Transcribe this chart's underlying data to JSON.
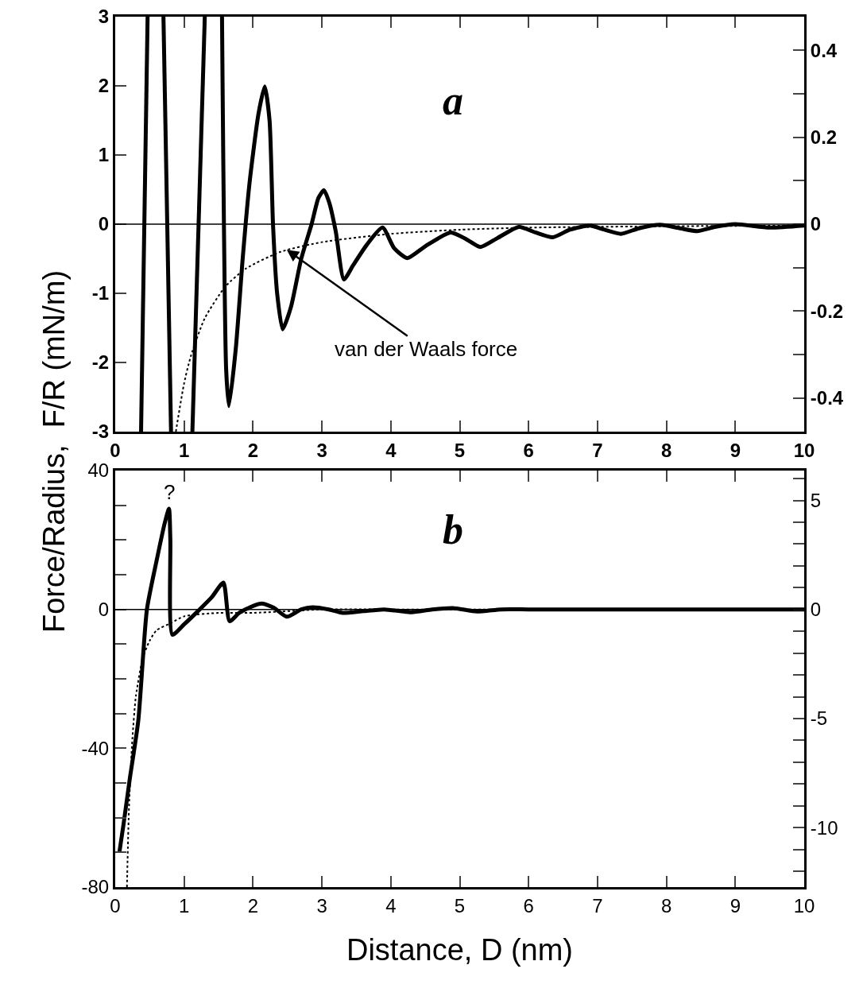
{
  "chart_data": [
    {
      "type": "line",
      "ylabel": "Force/Radius,  F/R (mN/m)",
      "annotations": [
        "a",
        {
          "text": "van der Waals force",
          "x": 2.49,
          "y": -0.37
        }
      ],
      "series": [
        {
          "color": "#000000",
          "line_style": "solid",
          "x": [
            0.375,
            0.47,
            0.58,
            0.7,
            0.81,
            0.95,
            1.12,
            1.3,
            1.42,
            1.55,
            1.61,
            1.65,
            1.75,
            1.85,
            1.95,
            2.08,
            2.17,
            2.24,
            2.29,
            2.35,
            2.43,
            2.55,
            2.7,
            2.85,
            2.95,
            3.03,
            3.11,
            3.2,
            3.32,
            3.45,
            3.65,
            3.88,
            4.05,
            4.24,
            4.5,
            4.87,
            5.1,
            5.3,
            5.55,
            5.86,
            6.1,
            6.35,
            6.6,
            6.89,
            7.1,
            7.34,
            7.6,
            7.91,
            8.2,
            8.45,
            8.7,
            9.0,
            9.5,
            10
          ],
          "values": [
            -3,
            3,
            null,
            3,
            -3,
            null,
            -3,
            3,
            null,
            3,
            -2.1,
            -2.63,
            -1.8,
            -0.5,
            0.6,
            1.6,
            1.99,
            1.5,
            0,
            -1.0,
            -1.52,
            -1.2,
            -0.5,
            0,
            0.38,
            0.49,
            0.3,
            -0.1,
            -0.8,
            -0.6,
            -0.3,
            -0.05,
            -0.35,
            -0.49,
            -0.32,
            -0.12,
            -0.22,
            -0.33,
            -0.2,
            -0.04,
            -0.12,
            -0.19,
            -0.08,
            -0.02,
            -0.08,
            -0.14,
            -0.06,
            -0.01,
            -0.06,
            -0.1,
            -0.04,
            0,
            -0.05,
            -0.02
          ]
        },
        {
          "color": "#000000",
          "line_style": "dotted",
          "x": [
            0.88,
            1.0,
            1.1,
            1.3,
            1.6,
            1.9,
            2.4,
            3.0,
            4.0,
            5.0,
            6.0,
            8.0,
            10.0
          ],
          "values": [
            -3.0,
            -2.3,
            -1.9,
            -1.36,
            -0.9,
            -0.64,
            -0.4,
            -0.26,
            -0.14,
            -0.08,
            -0.05,
            -0.03,
            -0.02
          ]
        }
      ],
      "xlim": [
        0,
        10
      ],
      "xticks": [
        0,
        1,
        2,
        3,
        4,
        5,
        6,
        7,
        8,
        9,
        10
      ],
      "ylim": [
        -3,
        3
      ],
      "yticks": [
        -3,
        -2,
        -1,
        0,
        1,
        2,
        3
      ],
      "y2lim": [
        -0.477,
        0.477
      ],
      "y2ticks": [
        -0.4,
        {
          "value": -0.3,
          "label": null
        },
        -0.2,
        {
          "value": -0.1,
          "label": null
        },
        0,
        {
          "value": 0.1,
          "label": null
        },
        0.2,
        {
          "value": 0.3,
          "label": null
        },
        0.4
      ],
      "ref_lines": [
        {
          "axis": "y",
          "value": 0,
          "color": "#000000"
        }
      ],
      "marker": "none"
    },
    {
      "type": "line",
      "xlabel": "Distance, D (nm)",
      "annotations": [
        "b",
        {
          "text": "?",
          "x": 0.78,
          "y": 29
        }
      ],
      "series": [
        {
          "color": "#000000",
          "line_style": "solid",
          "x": [
            0.06,
            0.12,
            0.21,
            0.335,
            0.46,
            0.6,
            0.72,
            0.78,
            0.8,
            0.83,
            1.0,
            1.2,
            1.4,
            1.57,
            1.66,
            1.8,
            2.0,
            2.13,
            2.3,
            2.49,
            2.7,
            2.86,
            3.1,
            3.3,
            3.6,
            3.9,
            4.3,
            4.6,
            4.9,
            5.25,
            5.6,
            6,
            7,
            8,
            9,
            10
          ],
          "values": [
            -70,
            -62,
            -49,
            -32,
            0,
            14,
            25,
            29,
            20,
            -7.3,
            -4.3,
            -0.5,
            3.5,
            7.7,
            -3.4,
            -1,
            1,
            1.7,
            0.5,
            -2.1,
            0,
            0.6,
            0,
            -1,
            -0.5,
            0,
            -0.8,
            0,
            0.4,
            -0.6,
            0,
            0,
            0,
            0,
            0,
            0
          ]
        },
        {
          "color": "#000000",
          "line_style": "dotted",
          "x": [
            0.17,
            0.2,
            0.25,
            0.3,
            0.4,
            0.5,
            0.6,
            0.8,
            1.0,
            1.5,
            2.0,
            3.0,
            4.0,
            6.0,
            10.0
          ],
          "values": [
            -80,
            -57,
            -37,
            -25,
            -14,
            -9,
            -6,
            -4,
            -2,
            -1,
            -1,
            0,
            0,
            0,
            0
          ]
        }
      ],
      "xlim": [
        0,
        10
      ],
      "xticks": [
        0,
        1,
        2,
        3,
        4,
        5,
        6,
        7,
        8,
        9,
        10
      ],
      "ylim": [
        -80,
        40
      ],
      "yticks": [
        -80,
        {
          "value": -70,
          "label": null
        },
        {
          "value": -60,
          "label": null
        },
        {
          "value": -50,
          "label": null
        },
        -40,
        {
          "value": -30,
          "label": null
        },
        {
          "value": -20,
          "label": null
        },
        {
          "value": -10,
          "label": null
        },
        0,
        {
          "value": 10,
          "label": null
        },
        {
          "value": 20,
          "label": null
        },
        {
          "value": 30,
          "label": null
        },
        40
      ],
      "y2lim": [
        -12.73,
        6.37
      ],
      "y2ticks": [
        {
          "value": -12,
          "label": null
        },
        {
          "value": -11,
          "label": null
        },
        -10,
        {
          "value": -9,
          "label": null
        },
        {
          "value": -8,
          "label": null
        },
        {
          "value": -7,
          "label": null
        },
        {
          "value": -6,
          "label": null
        },
        -5,
        {
          "value": -4,
          "label": null
        },
        {
          "value": -3,
          "label": null
        },
        {
          "value": -2,
          "label": null
        },
        {
          "value": -1,
          "label": null
        },
        0,
        {
          "value": 1,
          "label": null
        },
        {
          "value": 2,
          "label": null
        },
        {
          "value": 3,
          "label": null
        },
        {
          "value": 4,
          "label": null
        },
        5,
        {
          "value": 6,
          "label": null
        }
      ],
      "ref_lines": [
        {
          "axis": "y",
          "value": 0,
          "color": "#000000"
        }
      ],
      "marker": "none"
    }
  ]
}
